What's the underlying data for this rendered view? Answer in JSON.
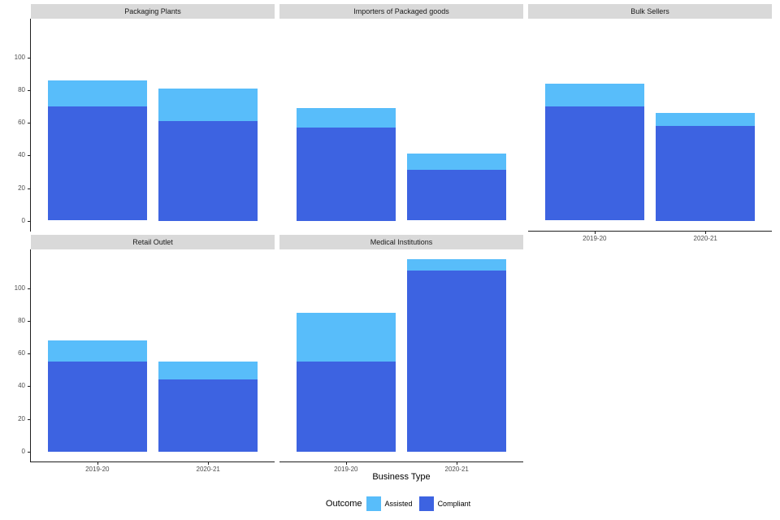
{
  "chart_data": {
    "type": "bar",
    "subtype": "stacked-bars-faceted",
    "facet_grid_columns": 3,
    "categories": [
      "2019-20",
      "2020-21"
    ],
    "series": [
      {
        "name": "Assisted",
        "color": "#58BDFA"
      },
      {
        "name": "Compliant",
        "color": "#3D63E1"
      }
    ],
    "stack_order_bottom_to_top": [
      "Compliant",
      "Assisted"
    ],
    "facets": [
      {
        "title": "Packaging Plants",
        "values": {
          "Compliant": [
            70,
            61
          ],
          "Assisted": [
            16,
            20
          ]
        }
      },
      {
        "title": "Importers of Packaged goods",
        "values": {
          "Compliant": [
            57,
            31
          ],
          "Assisted": [
            12,
            10
          ]
        }
      },
      {
        "title": "Bulk Sellers",
        "values": {
          "Compliant": [
            70,
            58
          ],
          "Assisted": [
            14,
            8
          ]
        }
      },
      {
        "title": "Retail Outlet",
        "values": {
          "Compliant": [
            55,
            44
          ],
          "Assisted": [
            13,
            11
          ]
        }
      },
      {
        "title": "Medical Institutions",
        "values": {
          "Compliant": [
            55,
            111
          ],
          "Assisted": [
            30,
            7
          ]
        }
      }
    ],
    "xlabel": "Business Type",
    "ylabel": "",
    "legend_title": "Outcome",
    "legend_position": "bottom",
    "yticks": [
      0,
      20,
      40,
      60,
      80,
      100
    ],
    "ylim": [
      0,
      124
    ],
    "grid": false,
    "strip_background": "#D9D9D9",
    "axis_text_color": "#4d4d4d"
  }
}
